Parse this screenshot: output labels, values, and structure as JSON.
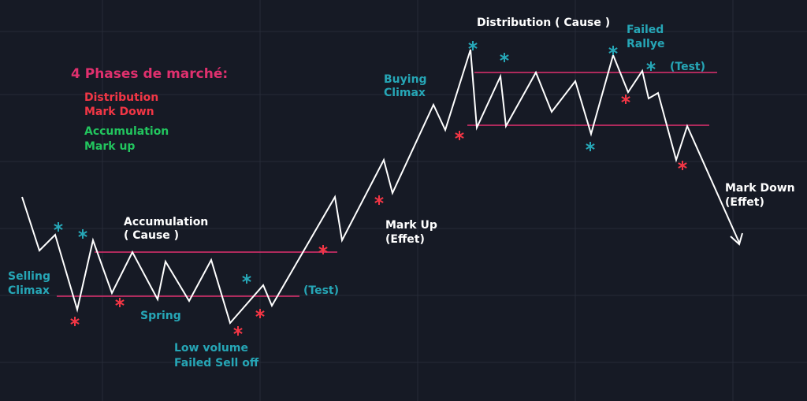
{
  "legend": {
    "title": "4 Phases de marché:",
    "items": [
      [
        "Distribution",
        "Mark Down"
      ],
      [
        "Accumulation",
        "Mark up"
      ]
    ]
  },
  "annotations": {
    "accumulation": [
      "Accumulation",
      "( Cause )"
    ],
    "selling_climax": [
      "Selling",
      "Climax"
    ],
    "spring": "Spring",
    "low_volume": [
      "Low volume",
      "Failed Sell off"
    ],
    "test_low": "(Test)",
    "mark_up": [
      "Mark Up",
      "(Effet)"
    ],
    "buying_climax": [
      "Buying",
      "Climax"
    ],
    "distribution": "Distribution ( Cause )",
    "failed_rallye": [
      "Failed",
      "Rallye"
    ],
    "test_high": "(Test)",
    "mark_down": [
      "Mark Down",
      "(Effet)"
    ]
  }
}
